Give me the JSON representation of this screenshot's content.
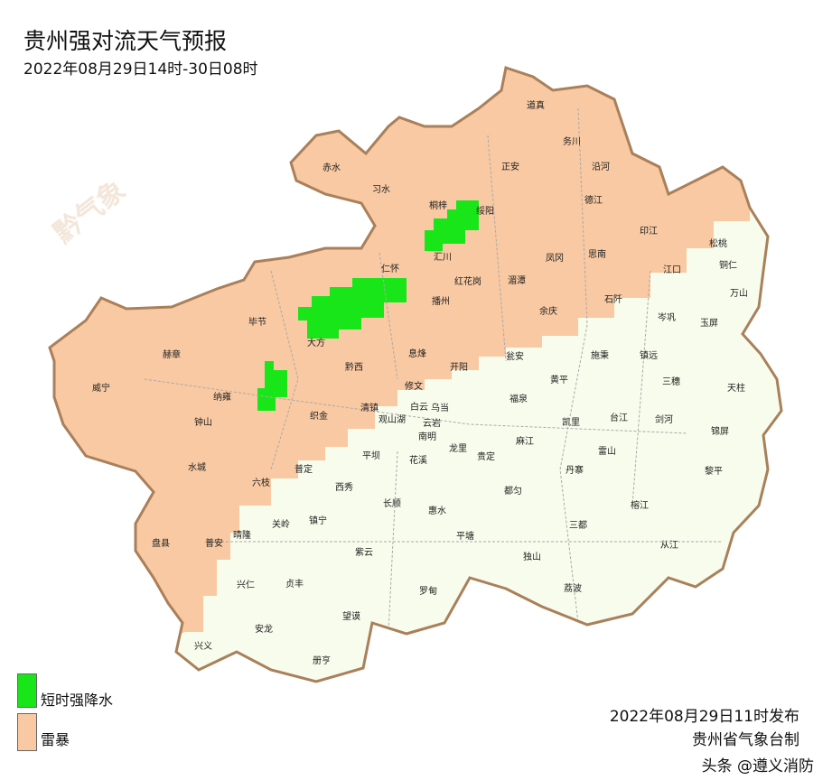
{
  "header": {
    "title": "贵州强对流天气预报",
    "subtitle": "2022年08月29日14时-30日08时"
  },
  "colors": {
    "thunderstorm": "#f8c9a2",
    "heavy_rain": "#19e619",
    "background_area": "#f8fcec",
    "border": "#b07a50"
  },
  "legend": [
    {
      "label": "短时强降水",
      "color": "#19e619"
    },
    {
      "label": "雷暴",
      "color": "#f8c9a2"
    }
  ],
  "counties": [
    "道真",
    "务川",
    "沿河",
    "赤水",
    "习水",
    "正安",
    "德江",
    "桐梓",
    "绥阳",
    "印江",
    "松桃",
    "汇川",
    "思南",
    "凤冈",
    "江口",
    "铜仁",
    "万山",
    "仁怀",
    "红花岗",
    "湄潭",
    "石阡",
    "播州",
    "岑巩",
    "毕节",
    "余庆",
    "玉屏",
    "大方",
    "赫章",
    "息烽",
    "开阳",
    "瓮安",
    "施秉",
    "镇远",
    "黔西",
    "威宁",
    "修文",
    "三穗",
    "天柱",
    "黄平",
    "纳雍",
    "清镇",
    "白云",
    "乌当",
    "福泉",
    "钟山",
    "观山湖",
    "云岩",
    "南明",
    "凯里",
    "台江",
    "剑河",
    "锦屏",
    "织金",
    "雷山",
    "水城",
    "龙里",
    "贵定",
    "麻江",
    "平坝",
    "花溪",
    "丹寨",
    "黎平",
    "普定",
    "六枝",
    "西秀",
    "长顺",
    "惠水",
    "都匀",
    "榕江",
    "镇宁",
    "关岭",
    "晴隆",
    "三都",
    "普安",
    "盘县",
    "平塘",
    "从江",
    "紫云",
    "独山",
    "兴仁",
    "贞丰",
    "荔波",
    "罗甸",
    "望谟",
    "安龙",
    "兴义",
    "册亨"
  ],
  "watermark": "黔气象",
  "footer": {
    "issued": "2022年08月29日11时发布",
    "maker": "贵州省气象台制",
    "overlay": "头条 @遵义消防"
  }
}
